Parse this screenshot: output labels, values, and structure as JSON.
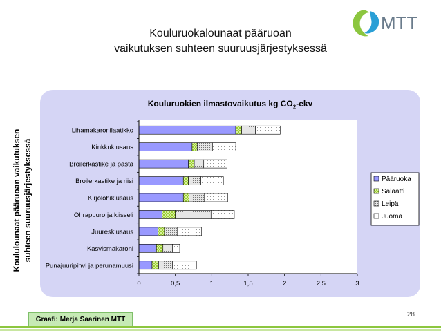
{
  "header": {
    "title_line1": "Kouluruokalounaat pääruoan",
    "title_line2": "vaikutuksen suhteen suuruusjärjestyksessä",
    "logo_text": "MTT"
  },
  "side_title": {
    "line1": "Koululounaat pääruoan vaikutuksen",
    "line2": "suhteen suuruusjärjestyksessä"
  },
  "chart_data": {
    "type": "bar",
    "orientation": "horizontal",
    "stacked": true,
    "title_prefix": "Kouluruokien ilmastovaikutus kg CO",
    "title_sub": "2",
    "title_suffix": "-ekv",
    "categories": [
      "Lihamakaronilaatikko",
      "Kinkkukiusaus",
      "Broilerkastike ja pasta",
      "Broilerkastike ja riisi",
      "Kirjolohikiusaus",
      "Ohrapuuro ja kiisseli",
      "Juureskiusaus",
      "Kasvismakaroni",
      "Punajuuripihvi ja perunamuusi"
    ],
    "series": [
      {
        "name": "Pääruoka",
        "values": [
          1.33,
          0.73,
          0.68,
          0.61,
          0.61,
          0.32,
          0.26,
          0.24,
          0.18
        ],
        "color": "#9999ff",
        "pattern": "solid"
      },
      {
        "name": "Salaatti",
        "values": [
          0.08,
          0.07,
          0.08,
          0.07,
          0.08,
          0.18,
          0.09,
          0.09,
          0.09
        ],
        "color": "#9acd32",
        "pattern": "checker"
      },
      {
        "name": "Leipä",
        "values": [
          0.19,
          0.21,
          0.13,
          0.17,
          0.21,
          0.49,
          0.18,
          0.13,
          0.19
        ],
        "color": "#cfcfcf",
        "pattern": "dots"
      },
      {
        "name": "Juoma",
        "values": [
          0.34,
          0.32,
          0.32,
          0.31,
          0.32,
          0.32,
          0.33,
          0.1,
          0.33
        ],
        "color": "#ffffff",
        "pattern": "sparse"
      }
    ],
    "xlim": [
      0,
      3
    ],
    "xticks": [
      0,
      0.5,
      1,
      1.5,
      2,
      2.5,
      3
    ],
    "xtick_labels": [
      "0",
      "0,5",
      "1",
      "1,5",
      "2",
      "2,5",
      "3"
    ],
    "legend_position": "right",
    "grid": false
  },
  "footer": {
    "credit": "Graafi: Merja Saarinen MTT",
    "page_number": "28"
  }
}
